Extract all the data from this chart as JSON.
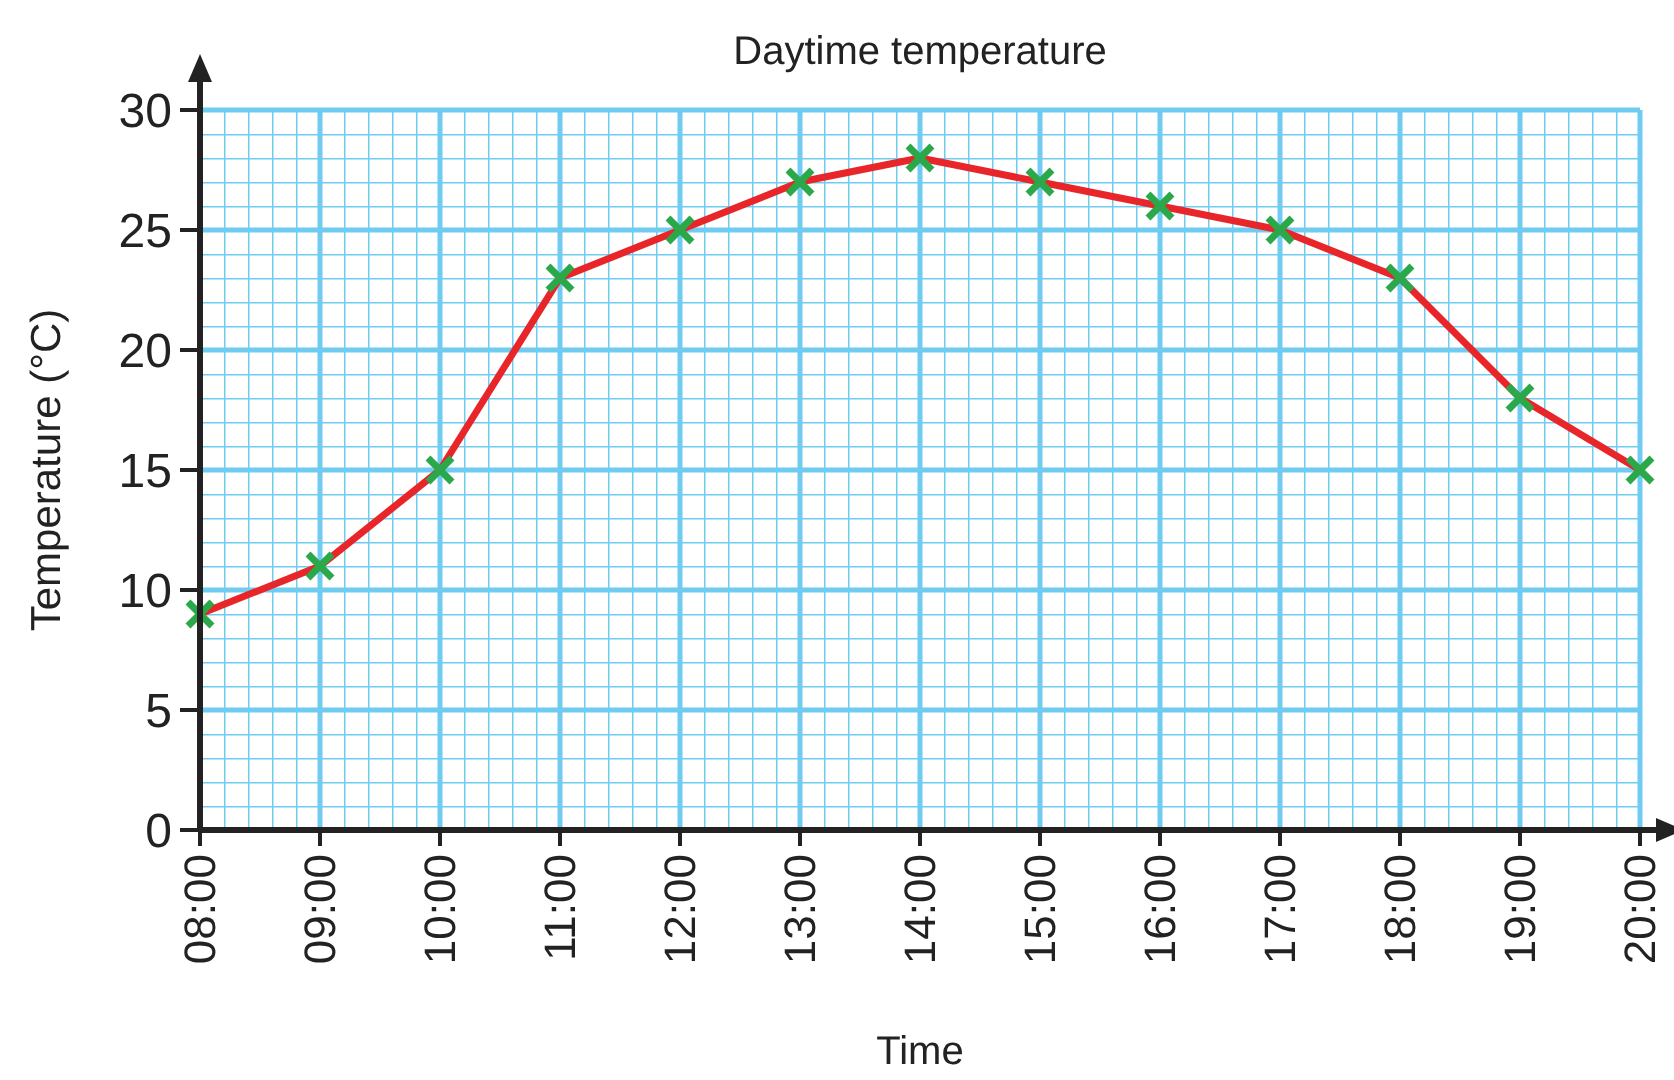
{
  "chart_data": {
    "type": "line",
    "title": "Daytime temperature",
    "xlabel": "Time",
    "ylabel": "Temperature (°C)",
    "categories": [
      "08:00",
      "09:00",
      "10:00",
      "11:00",
      "12:00",
      "13:00",
      "14:00",
      "15:00",
      "16:00",
      "17:00",
      "18:00",
      "19:00",
      "20:00"
    ],
    "series": [
      {
        "color": "#e8262a",
        "values": [
          9,
          11,
          15,
          23,
          25,
          27,
          28,
          27,
          26,
          25,
          23,
          18,
          15
        ]
      }
    ],
    "ylim": [
      0,
      30
    ],
    "yticks": [
      0,
      5,
      10,
      15,
      20,
      25,
      30
    ],
    "grid": true,
    "marker": "cross",
    "line_style": "solid"
  }
}
